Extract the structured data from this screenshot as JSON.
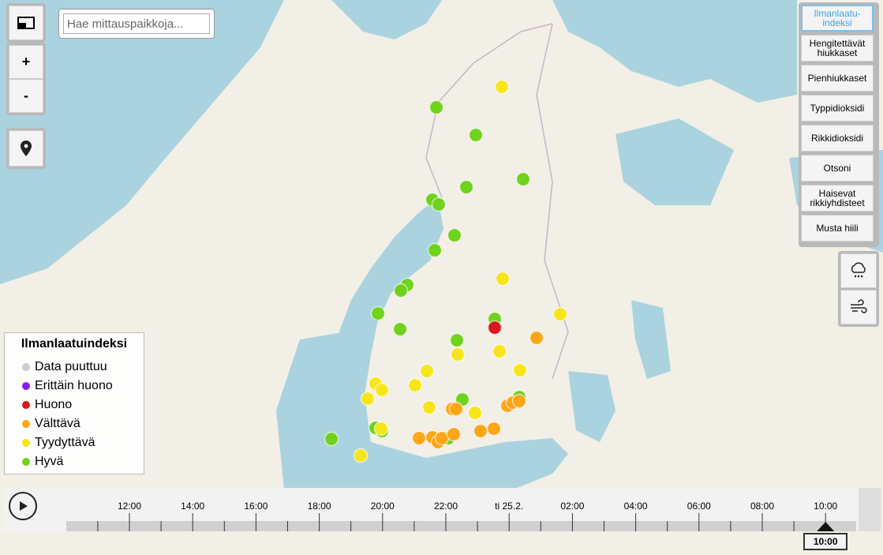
{
  "search": {
    "placeholder": "Hae mittauspaikkoja..."
  },
  "controls": {
    "zoom_in": "+",
    "zoom_out": "-"
  },
  "layers": [
    {
      "label": "Ilmanlaatu-indeksi",
      "selected": true
    },
    {
      "label": "Hengitettävät hiukkaset",
      "selected": false
    },
    {
      "label": "Pienhiukkaset",
      "selected": false
    },
    {
      "label": "Typpidioksidi",
      "selected": false
    },
    {
      "label": "Rikkidioksidi",
      "selected": false
    },
    {
      "label": "Otsoni",
      "selected": false
    },
    {
      "label": "Haisevat rikkiyhdisteet",
      "selected": false
    },
    {
      "label": "Musta hiili",
      "selected": false
    }
  ],
  "legend": {
    "title": "Ilmanlaatuindeksi",
    "items": [
      {
        "label": "Data puuttuu",
        "color": "#cccccc"
      },
      {
        "label": "Erittäin huono",
        "color": "#8b1cf0"
      },
      {
        "label": "Huono",
        "color": "#d7191c"
      },
      {
        "label": "Välttävä",
        "color": "#ffa516"
      },
      {
        "label": "Tyydyttävä",
        "color": "#f7e51c"
      },
      {
        "label": "Hyvä",
        "color": "#6fd21c"
      }
    ]
  },
  "timeline": {
    "labels": [
      "12:00",
      "14:00",
      "16:00",
      "18:00",
      "20:00",
      "22:00",
      "ti 25.2.",
      "02:00",
      "04:00",
      "06:00",
      "08:00",
      "10:00"
    ],
    "current": "10:00"
  }
}
